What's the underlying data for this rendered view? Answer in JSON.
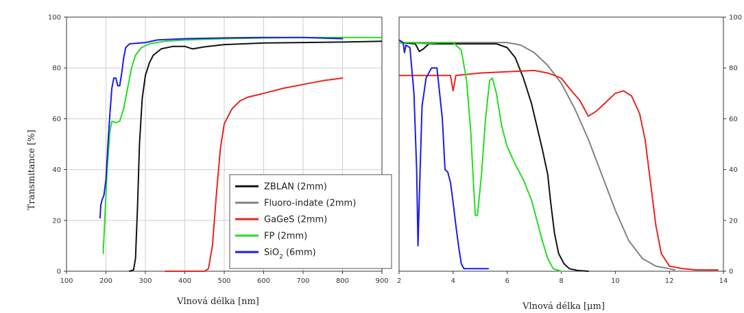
{
  "chart_data": [
    {
      "type": "line",
      "xlabel": "Vlnová délka [nm]",
      "ylabel": "Transmitance [%]",
      "xlim": [
        100,
        900
      ],
      "ylim": [
        0,
        100
      ],
      "xticks": [
        "100",
        "200",
        "300",
        "400",
        "500",
        "600",
        "700",
        "800",
        "900"
      ],
      "yticks": [
        "0",
        "20",
        "40",
        "60",
        "80",
        "100"
      ],
      "grid": true,
      "legend": {
        "placement": "bottom-right",
        "entries": [
          {
            "label": "ZBLAN (2mm)",
            "color": "#111111"
          },
          {
            "label": "Fluoro-indate (2mm)",
            "color": "#808080"
          },
          {
            "label": "GaGeS (2mm)",
            "color": "#e8241c"
          },
          {
            "label": "FP (2mm)",
            "color": "#22dd22"
          },
          {
            "label": "SiO2 (6mm)",
            "color": "#1a1aee",
            "base": "SiO",
            "sub": "2",
            "tail": " (6mm)"
          }
        ]
      },
      "series": [
        {
          "name": "ZBLAN (2mm)",
          "color": "#111111",
          "points": [
            [
              260,
              0
            ],
            [
              270,
              0.5
            ],
            [
              275,
              5
            ],
            [
              280,
              25
            ],
            [
              285,
              50
            ],
            [
              292,
              68
            ],
            [
              300,
              77
            ],
            [
              310,
              82
            ],
            [
              320,
              85
            ],
            [
              340,
              87.5
            ],
            [
              370,
              88.5
            ],
            [
              400,
              88.5
            ],
            [
              420,
              87.5
            ],
            [
              450,
              88.3
            ],
            [
              500,
              89.2
            ],
            [
              600,
              89.8
            ],
            [
              700,
              90
            ],
            [
              800,
              90.2
            ],
            [
              900,
              90.5
            ]
          ]
        },
        {
          "name": "GaGeS (2mm)",
          "color": "#e8241c",
          "points": [
            [
              350,
              0
            ],
            [
              450,
              0
            ],
            [
              460,
              1
            ],
            [
              470,
              10
            ],
            [
              480,
              30
            ],
            [
              490,
              48
            ],
            [
              500,
              58
            ],
            [
              520,
              64
            ],
            [
              540,
              67
            ],
            [
              560,
              68.5
            ],
            [
              600,
              70
            ],
            [
              650,
              72
            ],
            [
              700,
              73.5
            ],
            [
              750,
              75
            ],
            [
              800,
              76
            ]
          ]
        },
        {
          "name": "FP (2mm)",
          "color": "#22dd22",
          "points": [
            [
              193,
              7
            ],
            [
              197,
              20
            ],
            [
              203,
              40
            ],
            [
              210,
              55
            ],
            [
              215,
              59
            ],
            [
              225,
              58.5
            ],
            [
              235,
              59
            ],
            [
              245,
              64
            ],
            [
              255,
              72
            ],
            [
              265,
              80
            ],
            [
              275,
              85
            ],
            [
              290,
              88
            ],
            [
              310,
              89.5
            ],
            [
              350,
              90.5
            ],
            [
              400,
              91
            ],
            [
              500,
              91.5
            ],
            [
              600,
              91.8
            ],
            [
              700,
              92
            ],
            [
              800,
              92
            ],
            [
              900,
              92
            ]
          ]
        },
        {
          "name": "SiO2 (6mm)",
          "color": "#1a1aee",
          "points": [
            [
              185,
              21
            ],
            [
              187,
              26
            ],
            [
              190,
              28
            ],
            [
              195,
              30
            ],
            [
              200,
              36
            ],
            [
              205,
              50
            ],
            [
              210,
              62
            ],
            [
              215,
              72
            ],
            [
              220,
              76
            ],
            [
              225,
              76
            ],
            [
              230,
              73
            ],
            [
              235,
              73
            ],
            [
              240,
              78
            ],
            [
              245,
              84
            ],
            [
              250,
              88
            ],
            [
              260,
              89.5
            ],
            [
              300,
              90
            ],
            [
              330,
              91
            ],
            [
              400,
              91.5
            ],
            [
              500,
              91.8
            ],
            [
              600,
              92
            ],
            [
              700,
              92
            ],
            [
              800,
              91.5
            ]
          ]
        }
      ]
    },
    {
      "type": "line",
      "xlabel": "Vlnová délka [μm]",
      "ylabel": "",
      "xlim": [
        2,
        14
      ],
      "ylim": [
        0,
        100
      ],
      "xticks": [
        "2",
        "4",
        "6",
        "8",
        "10",
        "12",
        "14"
      ],
      "yticks": [
        "0",
        "20",
        "40",
        "60",
        "80",
        "100"
      ],
      "grid": false,
      "series": [
        {
          "name": "ZBLAN (2mm)",
          "color": "#111111",
          "points": [
            [
              2,
              90
            ],
            [
              2.6,
              89.5
            ],
            [
              2.75,
              86.5
            ],
            [
              2.9,
              87.5
            ],
            [
              3.1,
              89.5
            ],
            [
              4,
              89.5
            ],
            [
              5,
              89.5
            ],
            [
              5.6,
              89.5
            ],
            [
              6,
              88
            ],
            [
              6.3,
              84
            ],
            [
              6.6,
              76
            ],
            [
              6.9,
              66
            ],
            [
              7.1,
              57
            ],
            [
              7.3,
              48
            ],
            [
              7.5,
              38
            ],
            [
              7.6,
              28
            ],
            [
              7.75,
              15
            ],
            [
              7.9,
              7
            ],
            [
              8.1,
              3
            ],
            [
              8.3,
              1
            ],
            [
              8.6,
              0.3
            ],
            [
              9,
              0
            ]
          ]
        },
        {
          "name": "Fluoro-indate (2mm)",
          "color": "#808080",
          "points": [
            [
              2,
              90
            ],
            [
              3,
              90
            ],
            [
              4,
              90
            ],
            [
              5,
              90
            ],
            [
              6,
              90
            ],
            [
              6.5,
              89
            ],
            [
              7,
              86
            ],
            [
              7.5,
              81
            ],
            [
              8,
              74
            ],
            [
              8.5,
              64
            ],
            [
              9,
              52
            ],
            [
              9.5,
              38
            ],
            [
              10,
              24
            ],
            [
              10.5,
              12
            ],
            [
              11,
              5
            ],
            [
              11.5,
              2
            ],
            [
              12,
              1
            ],
            [
              12.2,
              0.5
            ]
          ]
        },
        {
          "name": "GaGeS (2mm)",
          "color": "#e8241c",
          "points": [
            [
              2,
              77
            ],
            [
              3,
              77
            ],
            [
              3.9,
              77
            ],
            [
              4,
              71
            ],
            [
              4.1,
              77
            ],
            [
              5,
              78
            ],
            [
              6,
              78.5
            ],
            [
              7,
              79
            ],
            [
              7.5,
              78
            ],
            [
              8,
              76
            ],
            [
              8.3,
              72
            ],
            [
              8.7,
              67
            ],
            [
              9,
              61
            ],
            [
              9.3,
              63
            ],
            [
              9.6,
              66
            ],
            [
              10,
              70
            ],
            [
              10.3,
              71
            ],
            [
              10.6,
              69
            ],
            [
              10.9,
              62
            ],
            [
              11.1,
              52
            ],
            [
              11.3,
              35
            ],
            [
              11.5,
              18
            ],
            [
              11.7,
              7
            ],
            [
              12,
              2
            ],
            [
              12.5,
              1
            ],
            [
              13,
              0.5
            ],
            [
              13.8,
              0.5
            ]
          ]
        },
        {
          "name": "FP (2mm)",
          "color": "#22dd22",
          "points": [
            [
              2,
              90
            ],
            [
              2.5,
              90
            ],
            [
              3,
              89.5
            ],
            [
              3.5,
              90
            ],
            [
              4,
              90
            ],
            [
              4.3,
              87
            ],
            [
              4.5,
              75
            ],
            [
              4.65,
              55
            ],
            [
              4.75,
              35
            ],
            [
              4.82,
              22
            ],
            [
              4.9,
              22
            ],
            [
              5.05,
              38
            ],
            [
              5.2,
              60
            ],
            [
              5.35,
              75
            ],
            [
              5.45,
              76
            ],
            [
              5.6,
              70
            ],
            [
              5.8,
              57
            ],
            [
              6,
              49
            ],
            [
              6.3,
              42
            ],
            [
              6.6,
              36
            ],
            [
              6.9,
              28
            ],
            [
              7.1,
              20
            ],
            [
              7.3,
              12
            ],
            [
              7.5,
              5
            ],
            [
              7.7,
              1
            ],
            [
              8,
              0
            ]
          ]
        },
        {
          "name": "SiO2 (6mm)",
          "color": "#1a1aee",
          "points": [
            [
              2,
              91
            ],
            [
              2.15,
              90
            ],
            [
              2.2,
              86
            ],
            [
              2.25,
              89
            ],
            [
              2.4,
              88
            ],
            [
              2.55,
              70
            ],
            [
              2.65,
              40
            ],
            [
              2.7,
              10
            ],
            [
              2.75,
              30
            ],
            [
              2.85,
              65
            ],
            [
              3,
              76
            ],
            [
              3.2,
              80
            ],
            [
              3.4,
              80
            ],
            [
              3.6,
              60
            ],
            [
              3.7,
              40
            ],
            [
              3.8,
              39
            ],
            [
              3.9,
              35
            ],
            [
              4,
              27
            ],
            [
              4.1,
              18
            ],
            [
              4.2,
              10
            ],
            [
              4.3,
              3
            ],
            [
              4.4,
              1
            ],
            [
              4.6,
              1
            ],
            [
              5,
              1
            ],
            [
              5.3,
              1
            ]
          ]
        }
      ]
    }
  ]
}
